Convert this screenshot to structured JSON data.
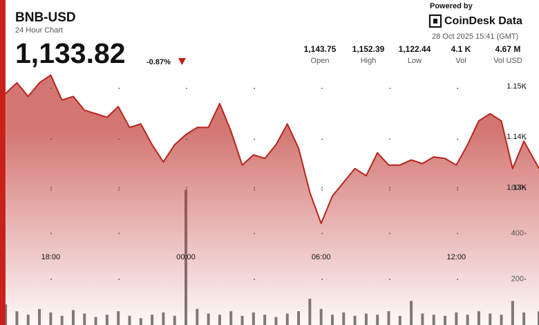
{
  "header": {
    "symbol": "BNB-USD",
    "subtitle": "24 Hour Chart",
    "price": "1,133.82",
    "change": "-0.87%",
    "powered_by": "Powered by",
    "brand": "CoinDesk Data",
    "timestamp": "28 Oct 2025 15:41 (GMT)",
    "stats": [
      {
        "value": "1,143.75",
        "label": "Open"
      },
      {
        "value": "1,152.39",
        "label": "High"
      },
      {
        "value": "1,122.44",
        "label": "Low"
      },
      {
        "value": "4.1 K",
        "label": "Vol"
      },
      {
        "value": "4.67 M",
        "label": "Vol USD"
      }
    ]
  },
  "chart_data": {
    "type": "area",
    "x": [
      0,
      0.5,
      1,
      1.5,
      2,
      2.5,
      3,
      3.5,
      4,
      4.5,
      5,
      5.5,
      6,
      6.5,
      7,
      7.5,
      8,
      8.5,
      9,
      9.5,
      10,
      10.5,
      11,
      11.5,
      12,
      12.5,
      13,
      13.5,
      14,
      14.5,
      15,
      15.5,
      16,
      16.5,
      17,
      17.5,
      18,
      18.5,
      19,
      19.5,
      20,
      20.5,
      21,
      21.5,
      22,
      22.5,
      23,
      23.67
    ],
    "xlim": [
      -0.25,
      23.67
    ],
    "xticks": [
      {
        "value": 2,
        "label": "18:00"
      },
      {
        "value": 8,
        "label": "00:00"
      },
      {
        "value": 14,
        "label": "06:00"
      },
      {
        "value": 20,
        "label": "12:00"
      }
    ],
    "series": [
      {
        "type": "area",
        "color": "#b8231c",
        "values": [
          1148.6,
          1150.7,
          1148.0,
          1150.7,
          1152.2,
          1147.3,
          1148.0,
          1145.3,
          1144.6,
          1143.9,
          1146.0,
          1141.9,
          1142.6,
          1138.5,
          1135.1,
          1138.5,
          1140.5,
          1141.9,
          1141.9,
          1146.6,
          1141.2,
          1134.5,
          1136.5,
          1135.8,
          1138.5,
          1142.6,
          1137.8,
          1129.1,
          1123.0,
          1128.4,
          1131.1,
          1133.8,
          1132.4,
          1136.9,
          1134.5,
          1134.5,
          1135.5,
          1134.8,
          1136.1,
          1135.8,
          1134.5,
          1138.5,
          1143.2,
          1144.6,
          1143.2,
          1133.8,
          1139.2,
          1133.82
        ]
      },
      {
        "type": "bar",
        "axis": "y2",
        "color": "#7d7d7d",
        "values": [
          90,
          60,
          45,
          70,
          55,
          40,
          65,
          50,
          35,
          45,
          60,
          40,
          30,
          45,
          55,
          40,
          590,
          70,
          50,
          45,
          60,
          40,
          55,
          45,
          35,
          50,
          60,
          115,
          70,
          45,
          55,
          40,
          50,
          45,
          60,
          40,
          105,
          50,
          45,
          40,
          55,
          45,
          60,
          50,
          45,
          105,
          55,
          60
        ]
      }
    ],
    "ylim": [
      1103,
      1167
    ],
    "yticks": [
      {
        "value": 1150,
        "label": "1.15K"
      },
      {
        "value": 1140,
        "label": "1.14K"
      },
      {
        "value": 1130,
        "label": "1.13K"
      }
    ],
    "y2lim": [
      0,
      1420
    ],
    "y2ticks": [
      200,
      400,
      600
    ],
    "grid": true
  }
}
